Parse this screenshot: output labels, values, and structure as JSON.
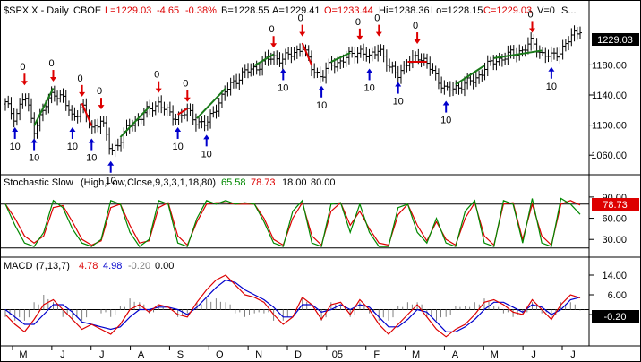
{
  "colors": {
    "background": "#ffffff",
    "price_bar": "#000000",
    "up_trend": "#1a7a1a",
    "down_trend": "#dd0000",
    "sell_arrow": "#dd0000",
    "buy_arrow": "#0000cc",
    "stoch_k": "#008800",
    "stoch_d": "#dd0000",
    "macd_line": "#dd0000",
    "macd_signal": "#0000cc",
    "histogram": "#7f7f7f",
    "last_tag_price": "#000000",
    "last_tag_stoch": "#dd0000",
    "last_tag_macd": "#000000"
  },
  "price_panel": {
    "header": {
      "symbol": "$SPX.X - Daily",
      "exchange": "CBOE",
      "last": "L=1229.03",
      "change": "-4.65",
      "pct": "-0.38%",
      "bid": "B=1228.55",
      "ask": "A=1229.41",
      "open": "O=1233.44",
      "high": "Hi=1238.36",
      "low": "Lo=1228.15",
      "close": "C=1229.03",
      "volume": "V=0",
      "extra": "S..."
    },
    "last_tag": "1229.03",
    "y_ticks": [
      "1180.00",
      "1140.00",
      "1100.00",
      "1060.00"
    ]
  },
  "stoch_panel": {
    "header": {
      "name": "Stochastic Slow",
      "params": "(High,Low,Close,9,3,3,1,18,80)",
      "k_value": "65.58",
      "d_value": "78.73",
      "lower": "18.00",
      "upper": "80.00"
    },
    "last_tag": "78.73",
    "y_ticks": [
      "90.00",
      "60.00",
      "30.00"
    ]
  },
  "macd_panel": {
    "header": {
      "name": "MACD",
      "params": "(7,13,7)",
      "macd_value": "4.78",
      "signal_value": "4.98",
      "hist_value": "-0.20",
      "zero": "0.00"
    },
    "last_tag": "-0.20",
    "y_ticks": [
      "14.00",
      "6.00",
      "-2.00"
    ]
  },
  "x_axis": {
    "labels": [
      "M",
      "J",
      "J",
      "A",
      "S",
      "O",
      "N",
      "D",
      "05",
      "F",
      "M",
      "A",
      "M",
      "J",
      "J"
    ]
  },
  "chart_data": {
    "type": "line",
    "title": "$SPX.X - Daily",
    "series": [
      {
        "name": "$SPX.X",
        "values": [
          1128,
          1110,
          1140,
          1095,
          1120,
          1145,
          1135,
          1110,
          1125,
          1095,
          1108,
          1065,
          1080,
          1100,
          1110,
          1120,
          1130,
          1115,
          1110,
          1118,
          1105,
          1100,
          1125,
          1145,
          1160,
          1170,
          1175,
          1185,
          1190,
          1188,
          1195,
          1205,
          1175,
          1165,
          1180,
          1185,
          1192,
          1200,
          1188,
          1205,
          1175,
          1170,
          1180,
          1195,
          1180,
          1165,
          1145,
          1150,
          1155,
          1160,
          1175,
          1185,
          1190,
          1195,
          1200,
          1210,
          1195,
          1190,
          1200,
          1215,
          1229
        ]
      }
    ],
    "ylim": [
      1040,
      1240
    ],
    "stochastic_slow": {
      "values_k": [
        80,
        50,
        25,
        20,
        40,
        85,
        75,
        45,
        25,
        20,
        30,
        85,
        80,
        40,
        20,
        30,
        85,
        80,
        25,
        20,
        60,
        85,
        80,
        85,
        80,
        82,
        80,
        55,
        25,
        20,
        70,
        85,
        25,
        20,
        80,
        82,
        40,
        80,
        40,
        20,
        20,
        75,
        80,
        40,
        25,
        60,
        25,
        20,
        70,
        85,
        25,
        20,
        85,
        80,
        25,
        88,
        25,
        20,
        88,
        80,
        65.58
      ],
      "values_d": [
        80,
        60,
        35,
        25,
        35,
        75,
        78,
        55,
        30,
        22,
        28,
        75,
        80,
        50,
        25,
        28,
        75,
        82,
        35,
        22,
        55,
        80,
        82,
        82,
        80,
        80,
        80,
        60,
        30,
        22,
        60,
        82,
        35,
        22,
        70,
        82,
        50,
        70,
        45,
        25,
        22,
        65,
        80,
        50,
        28,
        55,
        30,
        22,
        60,
        82,
        35,
        22,
        80,
        82,
        30,
        80,
        35,
        22,
        80,
        85,
        78.73
      ],
      "levels": [
        18,
        80
      ],
      "ylim": [
        10,
        100
      ]
    },
    "macd": {
      "macd_values": [
        -2,
        -6,
        -9,
        -4,
        2,
        4,
        0,
        -4,
        -8,
        -6,
        -8,
        -10,
        -6,
        0,
        2,
        -1,
        2,
        1,
        -2,
        -3,
        3,
        8,
        12,
        14,
        10,
        6,
        5,
        3,
        -2,
        -6,
        -3,
        5,
        2,
        -4,
        2,
        3,
        -2,
        4,
        0,
        -6,
        -10,
        -6,
        -2,
        2,
        -3,
        -8,
        -11,
        -8,
        -6,
        -2,
        3,
        4,
        2,
        -1,
        -2,
        4,
        0,
        -4,
        2,
        6,
        4.78
      ],
      "signal_values": [
        0,
        -3,
        -6,
        -6,
        -2,
        2,
        2,
        -1,
        -5,
        -6,
        -7,
        -8,
        -7,
        -3,
        0,
        0,
        1,
        1,
        0,
        -2,
        1,
        5,
        9,
        12,
        11,
        8,
        6,
        4,
        1,
        -3,
        -3,
        2,
        2,
        -1,
        0,
        2,
        0,
        2,
        1,
        -3,
        -7,
        -7,
        -4,
        0,
        -1,
        -5,
        -9,
        -9,
        -7,
        -4,
        0,
        3,
        3,
        1,
        -1,
        2,
        1,
        -2,
        0,
        4,
        4.98
      ],
      "ylim": [
        -14,
        18
      ]
    }
  }
}
